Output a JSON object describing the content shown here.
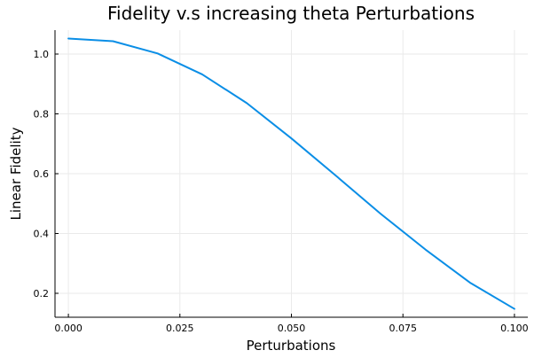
{
  "chart_data": {
    "type": "line",
    "title": "Fidelity v.s increasing theta Perturbations",
    "xlabel": "Perturbations",
    "ylabel": "Linear Fidelity",
    "xlim": [
      -0.003,
      0.103
    ],
    "ylim": [
      0.12,
      1.08
    ],
    "xticks": [
      0.0,
      0.025,
      0.05,
      0.075,
      0.1
    ],
    "xtick_labels": [
      "0.000",
      "0.025",
      "0.050",
      "0.075",
      "0.100"
    ],
    "yticks": [
      0.2,
      0.4,
      0.6,
      0.8,
      1.0
    ],
    "ytick_labels": [
      "0.2",
      "0.4",
      "0.6",
      "0.8",
      "1.0"
    ],
    "grid": true,
    "series": [
      {
        "color": "#0a8ee6",
        "x": [
          0.0,
          0.01,
          0.02,
          0.03,
          0.04,
          0.05,
          0.06,
          0.07,
          0.08,
          0.09,
          0.1
        ],
        "y": [
          1.052,
          1.043,
          1.002,
          0.932,
          0.836,
          0.718,
          0.593,
          0.466,
          0.347,
          0.236,
          0.148
        ]
      }
    ]
  }
}
